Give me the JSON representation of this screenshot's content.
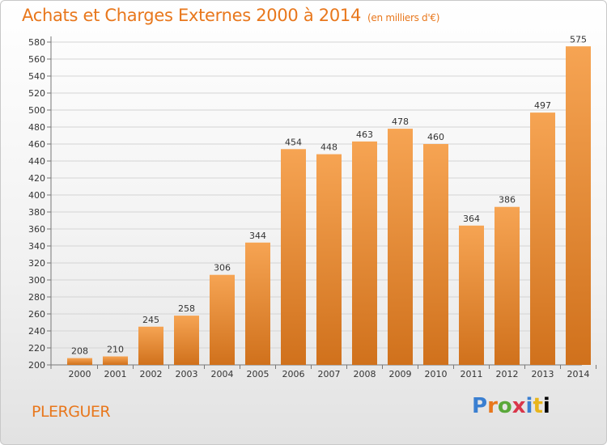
{
  "header": {
    "title": "Achats et Charges Externes 2000 à 2014",
    "subtitle": "(en milliers d'€)"
  },
  "footer": {
    "town": "PLERGUER",
    "logo": "Proxiti"
  },
  "colors": {
    "bar_top": "#f6a453",
    "bar_bottom": "#d0711c",
    "accent": "#e8771c"
  },
  "chart_data": {
    "type": "bar",
    "title": "Achats et Charges Externes 2000 à 2014",
    "subtitle": "(en milliers d'€)",
    "categories": [
      "2000",
      "2001",
      "2002",
      "2003",
      "2004",
      "2005",
      "2006",
      "2007",
      "2008",
      "2009",
      "2010",
      "2011",
      "2012",
      "2013",
      "2014"
    ],
    "values": [
      208,
      210,
      245,
      258,
      306,
      344,
      454,
      448,
      463,
      478,
      460,
      364,
      386,
      497,
      575
    ],
    "ylim": [
      200,
      580
    ],
    "ytick_step": 20,
    "grid": true,
    "legend": "none"
  }
}
